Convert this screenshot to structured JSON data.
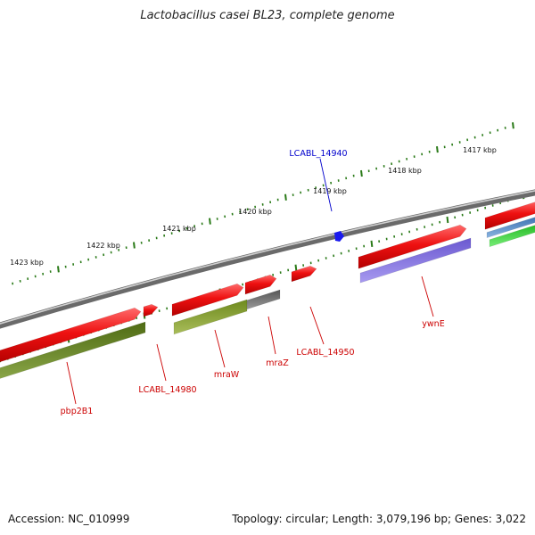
{
  "title": "Lactobacillus casei BL23, complete genome",
  "footer": {
    "accession": "Accession: NC_010999",
    "summary": "Topology: circular; Length: 3,079,196 bp; Genes: 3,022"
  },
  "scale_labels": [
    "1423 kbp",
    "1422 kbp",
    "1421 kbp",
    "1420 kbp",
    "1419 kbp",
    "1418 kbp",
    "1417 kbp"
  ],
  "gene_labels": [
    {
      "text": "LCABL_14940",
      "color": "#0000cc"
    },
    {
      "text": "ywnE",
      "color": "#cc0000"
    },
    {
      "text": "LCABL_14950",
      "color": "#cc0000"
    },
    {
      "text": "mraZ",
      "color": "#cc0000"
    },
    {
      "text": "mraW",
      "color": "#cc0000"
    },
    {
      "text": "LCABL_14980",
      "color": "#cc0000"
    },
    {
      "text": "pbp2B1",
      "color": "#cc0000"
    }
  ],
  "colors": {
    "backbone": "#8a8a8a",
    "cds": "#ee1111",
    "scale_ticks": "#2a7a18",
    "cog_olive": "#7a9a28",
    "cog_gray": "#6e6e6e",
    "cog_purple": "#7b68dd",
    "cog_blue": "#4a7fc0",
    "cog_green": "#33cc33",
    "trna": "#1a1aee"
  }
}
